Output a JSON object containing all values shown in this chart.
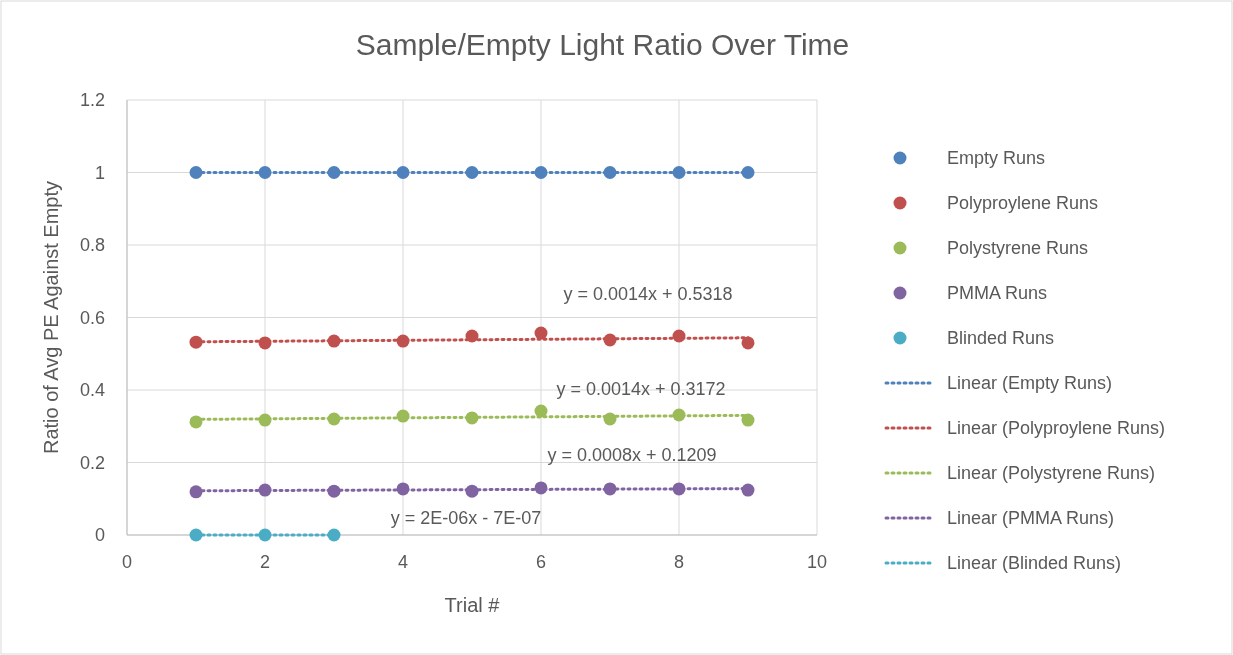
{
  "chart_data": {
    "type": "scatter",
    "title": "Sample/Empty Light Ratio Over Time",
    "xlabel": "Trial #",
    "ylabel": "Ratio of Avg PE Against Empty",
    "xlim": [
      0,
      10
    ],
    "xticks": [
      0,
      2,
      4,
      6,
      8,
      10
    ],
    "ylim": [
      0,
      1.2
    ],
    "yticks": [
      0,
      0.2,
      0.4,
      0.6,
      0.8,
      1,
      1.2
    ],
    "grid": true,
    "legend": "right",
    "series": [
      {
        "name": "Empty Runs",
        "color": "#4f81bd",
        "marker": "circle",
        "x": [
          1,
          2,
          3,
          4,
          5,
          6,
          7,
          8,
          9
        ],
        "values": [
          1,
          1,
          1,
          1,
          1,
          1,
          1,
          1,
          1
        ]
      },
      {
        "name": "Polyproylene Runs",
        "color": "#c0504d",
        "marker": "circle",
        "x": [
          1,
          2,
          3,
          4,
          5,
          6,
          7,
          8,
          9
        ],
        "values": [
          0.532,
          0.53,
          0.535,
          0.535,
          0.549,
          0.557,
          0.538,
          0.549,
          0.53
        ]
      },
      {
        "name": "Polystyrene Runs",
        "color": "#9bbb59",
        "marker": "circle",
        "x": [
          1,
          2,
          3,
          4,
          5,
          6,
          7,
          8,
          9
        ],
        "values": [
          0.312,
          0.317,
          0.32,
          0.328,
          0.323,
          0.342,
          0.32,
          0.331,
          0.317
        ]
      },
      {
        "name": "PMMA Runs",
        "color": "#8064a2",
        "marker": "circle",
        "x": [
          1,
          2,
          3,
          4,
          5,
          6,
          7,
          8,
          9
        ],
        "values": [
          0.119,
          0.124,
          0.121,
          0.127,
          0.121,
          0.13,
          0.127,
          0.127,
          0.124
        ]
      },
      {
        "name": "Blinded Runs",
        "color": "#4bacc6",
        "marker": "circle",
        "x": [
          1,
          2,
          3
        ],
        "values": [
          0,
          0,
          0
        ]
      },
      {
        "name": "Linear (Empty Runs)",
        "type": "line",
        "marker": "none",
        "line_style": "dotted",
        "color": "#4f81bd",
        "x": [
          1,
          9
        ],
        "values": [
          1,
          1
        ]
      },
      {
        "name": "Linear (Polyproylene Runs)",
        "type": "line",
        "marker": "none",
        "line_style": "dotted",
        "color": "#c0504d",
        "x": [
          1,
          9
        ],
        "values": [
          0.533,
          0.544
        ]
      },
      {
        "name": "Linear (Polystyrene Runs)",
        "type": "line",
        "marker": "none",
        "line_style": "dotted",
        "color": "#9bbb59",
        "x": [
          1,
          9
        ],
        "values": [
          0.319,
          0.33
        ]
      },
      {
        "name": "Linear (PMMA Runs)",
        "type": "line",
        "marker": "none",
        "line_style": "dotted",
        "color": "#8064a2",
        "x": [
          1,
          9
        ],
        "values": [
          0.122,
          0.128
        ]
      },
      {
        "name": "Linear (Blinded Runs)",
        "type": "line",
        "marker": "none",
        "line_style": "dotted",
        "color": "#4bacc6",
        "x": [
          1,
          3
        ],
        "values": [
          0,
          0
        ]
      }
    ],
    "annotations": [
      "y = 0.0014x + 0.5318",
      "y = 0.0014x + 0.3172",
      "y = 0.0008x + 0.1209",
      "y = 2E-06x - 7E-07"
    ]
  }
}
